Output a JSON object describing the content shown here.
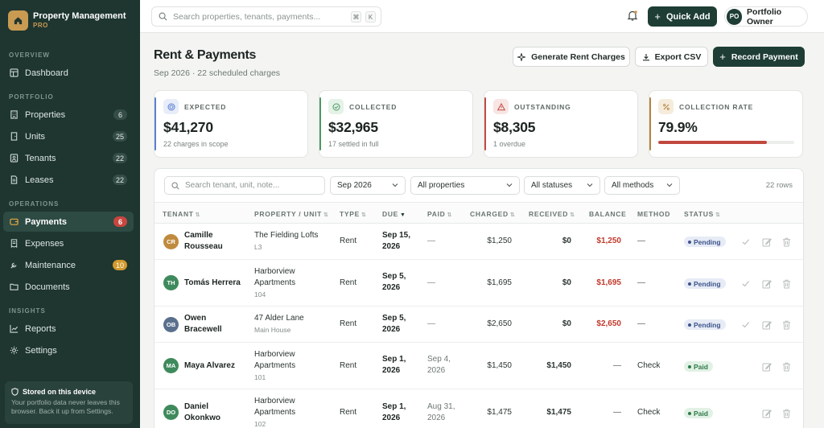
{
  "brand": {
    "title": "Property Management",
    "subtitle": "PRO"
  },
  "sidebar": {
    "sections": [
      {
        "label": "OVERVIEW"
      },
      {
        "label": "PORTFOLIO"
      },
      {
        "label": "OPERATIONS"
      },
      {
        "label": "INSIGHTS"
      }
    ],
    "items": [
      {
        "label": "Dashboard",
        "badge": ""
      },
      {
        "label": "Properties",
        "badge": "6"
      },
      {
        "label": "Units",
        "badge": "25"
      },
      {
        "label": "Tenants",
        "badge": "22"
      },
      {
        "label": "Leases",
        "badge": "22"
      },
      {
        "label": "Payments",
        "badge": "6"
      },
      {
        "label": "Expenses",
        "badge": ""
      },
      {
        "label": "Maintenance",
        "badge": "10"
      },
      {
        "label": "Documents",
        "badge": ""
      },
      {
        "label": "Reports",
        "badge": ""
      },
      {
        "label": "Settings",
        "badge": ""
      }
    ],
    "device_note": {
      "title": "Stored on this device",
      "text": "Your portfolio data never leaves this browser. Back it up from Settings."
    }
  },
  "topbar": {
    "search_placeholder": "Search properties, tenants, payments...",
    "kbd_cmd": "⌘",
    "kbd_k": "K",
    "quick_add": "Quick Add",
    "owner_initials": "PO",
    "owner_name": "Portfolio Owner"
  },
  "page": {
    "title": "Rent & Payments",
    "subtitle": "Sep 2026 · 22 scheduled charges",
    "actions": {
      "generate": "Generate Rent Charges",
      "export": "Export CSV",
      "record": "Record Payment"
    }
  },
  "cards": [
    {
      "label": "EXPECTED",
      "value": "$41,270",
      "note": "22 charges in scope",
      "accent": "#5b7fd1"
    },
    {
      "label": "COLLECTED",
      "value": "$32,965",
      "note": "17 settled in full",
      "accent": "#4d9a63"
    },
    {
      "label": "OUTSTANDING",
      "value": "$8,305",
      "note": "1 overdue",
      "accent": "#c44a42"
    },
    {
      "label": "COLLECTION RATE",
      "value": "79.9%",
      "progress": 0.799,
      "accent": "#b3833f"
    }
  ],
  "filters": {
    "search_placeholder": "Search tenant, unit, note...",
    "period": "Sep 2026",
    "property": "All properties",
    "status": "All statuses",
    "method": "All methods",
    "rows_count": "22 rows"
  },
  "table": {
    "columns": [
      "TENANT",
      "PROPERTY / UNIT",
      "TYPE",
      "DUE",
      "PAID",
      "CHARGED",
      "RECEIVED",
      "BALANCE",
      "METHOD",
      "STATUS"
    ],
    "rows": [
      {
        "initials": "CR",
        "avatar_color": "#c08a3e",
        "name_1": "Camille",
        "name_2": "Rousseau",
        "prop_1": "The Fielding Lofts",
        "prop_2": "",
        "unit": "L3",
        "type": "Rent",
        "due_1": "Sep 15,",
        "due_2": "2026",
        "paid_1": "—",
        "paid_2": "",
        "charged": "$1,250",
        "received": "$0",
        "balance": "$1,250",
        "balance_red": true,
        "method": "—",
        "status": "Pending"
      },
      {
        "initials": "TH",
        "avatar_color": "#3f8a5c",
        "name_1": "Tomás Herrera",
        "name_2": "",
        "prop_1": "Harborview",
        "prop_2": "Apartments",
        "unit": "104",
        "type": "Rent",
        "due_1": "Sep 5,",
        "due_2": "2026",
        "paid_1": "—",
        "paid_2": "",
        "charged": "$1,695",
        "received": "$0",
        "balance": "$1,695",
        "balance_red": true,
        "method": "—",
        "status": "Pending"
      },
      {
        "initials": "OB",
        "avatar_color": "#5a6f8c",
        "name_1": "Owen",
        "name_2": "Bracewell",
        "prop_1": "47 Alder Lane",
        "prop_2": "",
        "unit": "Main House",
        "type": "Rent",
        "due_1": "Sep 5,",
        "due_2": "2026",
        "paid_1": "—",
        "paid_2": "",
        "charged": "$2,650",
        "received": "$0",
        "balance": "$2,650",
        "balance_red": true,
        "method": "—",
        "status": "Pending"
      },
      {
        "initials": "MA",
        "avatar_color": "#3f8a5c",
        "name_1": "Maya Alvarez",
        "name_2": "",
        "prop_1": "Harborview",
        "prop_2": "Apartments",
        "unit": "101",
        "type": "Rent",
        "due_1": "Sep 1,",
        "due_2": "2026",
        "paid_1": "Sep 4,",
        "paid_2": "2026",
        "charged": "$1,450",
        "received": "$1,450",
        "balance": "—",
        "balance_red": false,
        "method": "Check",
        "status": "Paid"
      },
      {
        "initials": "DO",
        "avatar_color": "#3f8a5c",
        "name_1": "Daniel",
        "name_2": "Okonkwo",
        "prop_1": "Harborview",
        "prop_2": "Apartments",
        "unit": "102",
        "type": "Rent",
        "due_1": "Sep 1,",
        "due_2": "2026",
        "paid_1": "Aug 31,",
        "paid_2": "2026",
        "charged": "$1,475",
        "received": "$1,475",
        "balance": "—",
        "balance_red": false,
        "method": "Check",
        "status": "Paid"
      }
    ]
  }
}
